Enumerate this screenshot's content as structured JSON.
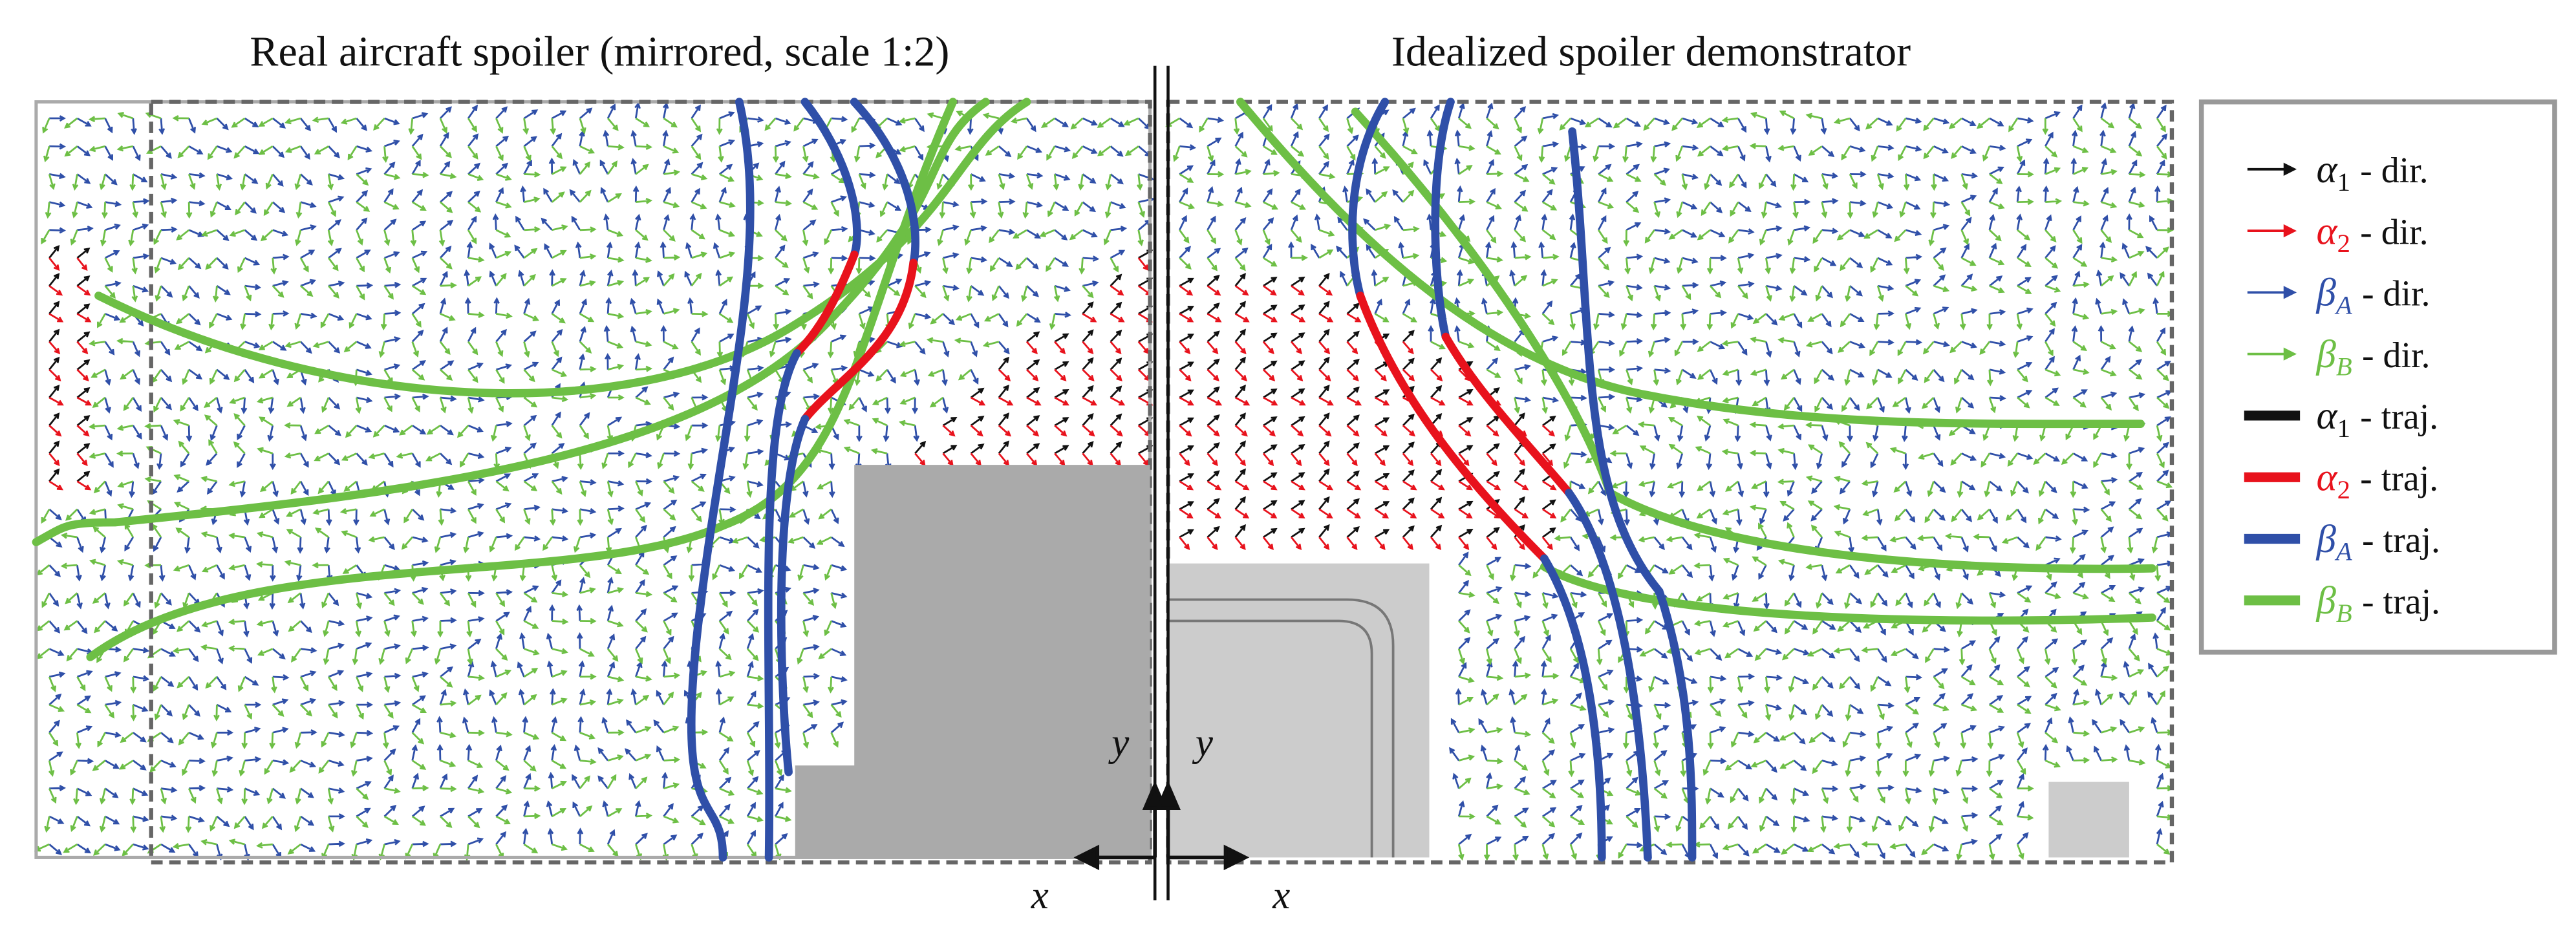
{
  "panels": [
    {
      "title": "Real aircraft spoiler (mirrored, scale 1:2)",
      "x_label": "x",
      "y_label": "y"
    },
    {
      "title": "Idealized spoiler demonstrator",
      "x_label": "x",
      "y_label": "y"
    }
  ],
  "legend": {
    "entries": [
      {
        "symbol": "α",
        "sub": "1",
        "text": "- dir.",
        "color": "#111111",
        "kind": "dir"
      },
      {
        "symbol": "α",
        "sub": "2",
        "text": "- dir.",
        "color": "#e8121c",
        "kind": "dir"
      },
      {
        "symbol": "β",
        "sub": "A",
        "text": "- dir.",
        "color": "#2f4fa8",
        "kind": "dir"
      },
      {
        "symbol": "β",
        "sub": "B",
        "text": "- dir.",
        "color": "#6dbf45",
        "kind": "dir"
      },
      {
        "symbol": "α",
        "sub": "1",
        "text": "- traj.",
        "color": "#111111",
        "kind": "traj"
      },
      {
        "symbol": "α",
        "sub": "2",
        "text": "- traj.",
        "color": "#e8121c",
        "kind": "traj"
      },
      {
        "symbol": "β",
        "sub": "A",
        "text": "- traj.",
        "color": "#2f4fa8",
        "kind": "traj"
      },
      {
        "symbol": "β",
        "sub": "B",
        "text": "- traj.",
        "color": "#6dbf45",
        "kind": "traj"
      }
    ]
  }
}
